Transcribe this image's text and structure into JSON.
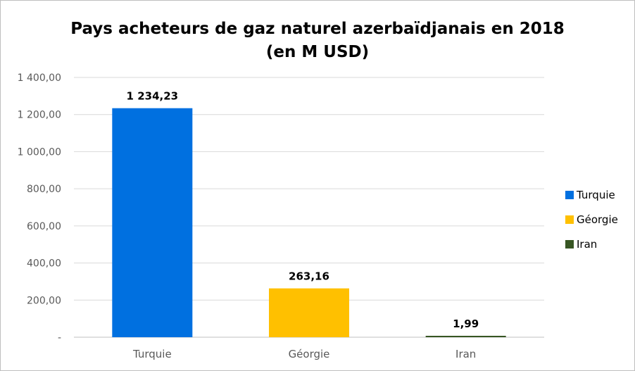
{
  "chart_data": {
    "type": "bar",
    "title_line1": "Pays acheteurs de gaz naturel azerbaïdjanais en 2018",
    "title_line2": "(en M USD)",
    "categories": [
      "Turquie",
      "Géorgie",
      "Iran"
    ],
    "values": [
      1234.23,
      263.16,
      1.99
    ],
    "data_labels": [
      "1 234,23",
      "263,16",
      "1,99"
    ],
    "colors": [
      "#0070e0",
      "#ffc000",
      "#375623"
    ],
    "ylim": [
      0,
      1400
    ],
    "yticks": [
      0,
      200,
      400,
      600,
      800,
      1000,
      1200,
      1400
    ],
    "ytick_labels": [
      "-",
      "200,00",
      "400,00",
      "600,00",
      "800,00",
      "1 000,00",
      "1 200,00",
      "1 400,00"
    ],
    "grid": true,
    "legend_position": "right",
    "legend": [
      "Turquie",
      "Géorgie",
      "Iran"
    ]
  }
}
